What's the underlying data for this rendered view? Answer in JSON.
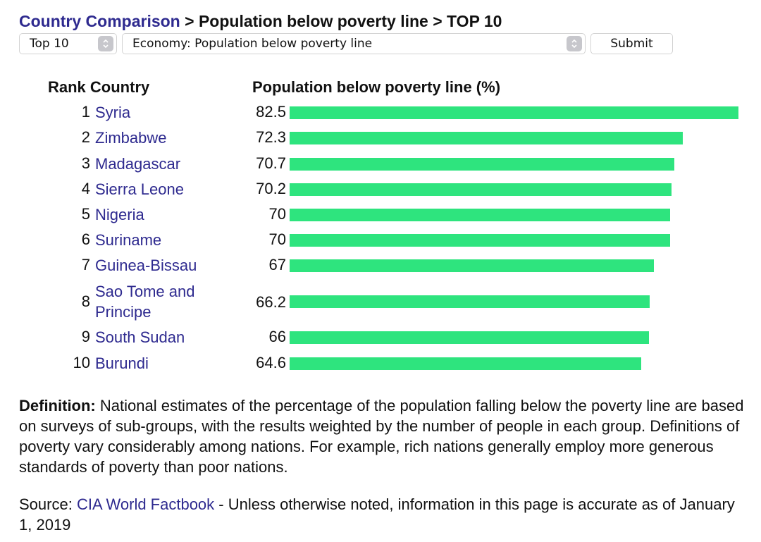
{
  "breadcrumb": {
    "link": "Country Comparison",
    "sep1": ">",
    "crumb2": "Population below poverty line",
    "sep2": ">",
    "crumb3": "TOP 10"
  },
  "controls": {
    "top_select": "Top 10",
    "field_select": "Economy: Population below poverty line",
    "submit_label": "Submit"
  },
  "table": {
    "header_rank_country": "Rank Country",
    "header_value": "Population below poverty line (%)"
  },
  "chart_data": {
    "type": "bar",
    "title": "",
    "ylabel": "Population below poverty line (%)",
    "bar_color": "#2ee47e",
    "xlim": [
      0,
      82.5
    ],
    "categories": [
      "Syria",
      "Zimbabwe",
      "Madagascar",
      "Sierra Leone",
      "Nigeria",
      "Suriname",
      "Guinea-Bissau",
      "Sao Tome and Principe",
      "South Sudan",
      "Burundi"
    ],
    "values": [
      82.5,
      72.3,
      70.7,
      70.2,
      70,
      70,
      67,
      66.2,
      66,
      64.6
    ]
  },
  "rows": [
    {
      "rank": "1",
      "country": "Syria",
      "value": "82.5"
    },
    {
      "rank": "2",
      "country": "Zimbabwe",
      "value": "72.3"
    },
    {
      "rank": "3",
      "country": "Madagascar",
      "value": "70.7"
    },
    {
      "rank": "4",
      "country": "Sierra Leone",
      "value": "70.2"
    },
    {
      "rank": "5",
      "country": "Nigeria",
      "value": "70"
    },
    {
      "rank": "6",
      "country": "Suriname",
      "value": "70"
    },
    {
      "rank": "7",
      "country": "Guinea-Bissau",
      "value": "67"
    },
    {
      "rank": "8",
      "country_line1": "Sao Tome and",
      "country_line2": "Principe",
      "value": "66.2"
    },
    {
      "rank": "9",
      "country": "South Sudan",
      "value": "66"
    },
    {
      "rank": "10",
      "country": "Burundi",
      "value": "64.6"
    }
  ],
  "definition": {
    "label": "Definition:",
    "text": " National estimates of the percentage of the population falling below the poverty line are based on surveys of sub-groups, with the results weighted by the number of people in each group. Definitions of poverty vary considerably among nations. For example, rich nations generally employ more generous standards of poverty than poor nations."
  },
  "source": {
    "prefix": "Source: ",
    "link": "CIA World Factbook",
    "text": " - Unless otherwise noted, information in this page is accurate as of January 1, 2019"
  }
}
